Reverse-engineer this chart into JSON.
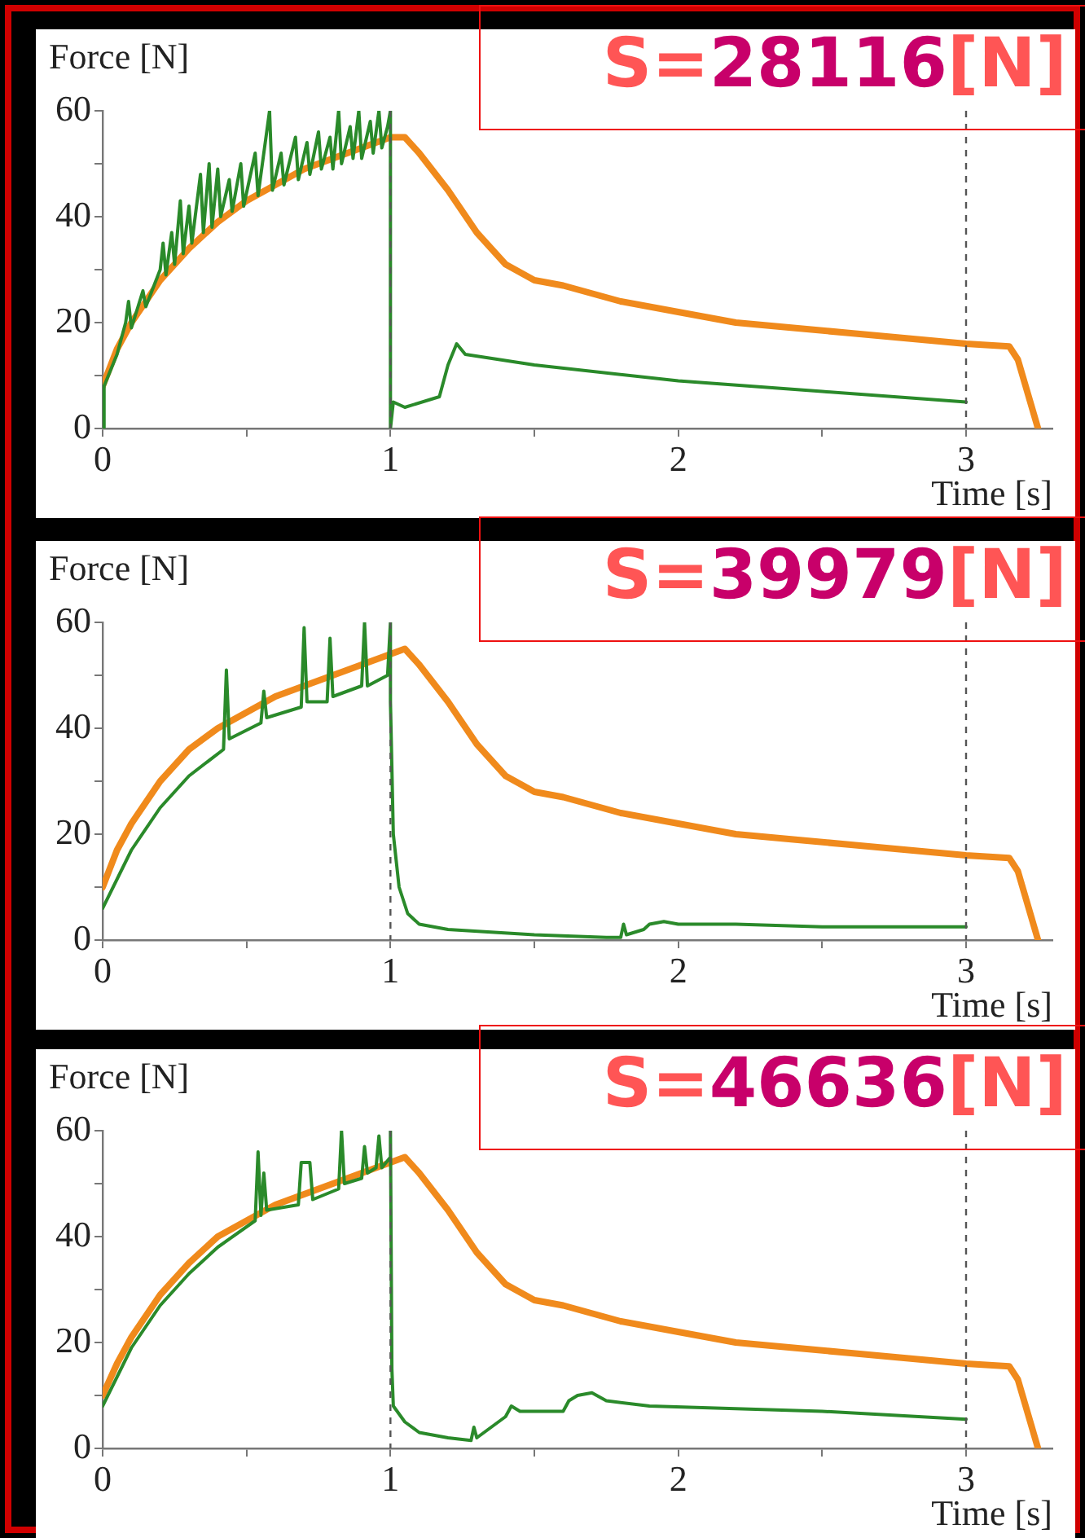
{
  "chart_data": [
    {
      "type": "line",
      "xlabel": "Time [s]",
      "ylabel": "Force [N]",
      "annotations": [
        "S=28116[N]"
      ],
      "xlim": [
        0,
        3.3
      ],
      "ylim": [
        0,
        60
      ],
      "xticks": [
        0,
        {
          "value": 0.5,
          "label": null
        },
        1,
        {
          "value": 1.5,
          "label": null
        },
        2,
        {
          "value": 2.5,
          "label": null
        },
        3
      ],
      "yticks": [
        0,
        {
          "value": 10,
          "label": null
        },
        20,
        {
          "value": 30,
          "label": null
        },
        40,
        {
          "value": 50,
          "label": null
        },
        60
      ],
      "grid": false,
      "legend": false,
      "marker": "none",
      "ref_lines": [
        {
          "axis": "x",
          "value": 1,
          "line_style": "dashed"
        },
        {
          "axis": "x",
          "value": 3,
          "line_style": "dashed"
        }
      ],
      "series": [
        {
          "color": "#f08a1c",
          "x": [
            0,
            0.05,
            0.1,
            0.2,
            0.3,
            0.4,
            0.5,
            0.6,
            0.7,
            0.8,
            0.9,
            1.0,
            1.05,
            1.1,
            1.2,
            1.3,
            1.4,
            1.5,
            1.6,
            1.8,
            2.0,
            2.2,
            2.4,
            2.6,
            2.8,
            3.0,
            3.15,
            3.18,
            3.25
          ],
          "values": [
            8,
            15,
            20,
            28,
            34,
            39,
            43,
            46,
            49,
            51,
            53,
            55,
            55,
            52,
            45,
            37,
            31,
            28,
            27,
            24,
            22,
            20,
            19,
            18,
            17,
            16,
            15.5,
            13,
            0
          ]
        },
        {
          "color": "#2a8a2a",
          "x": [
            0,
            0.005,
            0.05,
            0.08,
            0.09,
            0.1,
            0.14,
            0.15,
            0.2,
            0.21,
            0.22,
            0.24,
            0.25,
            0.27,
            0.28,
            0.3,
            0.31,
            0.34,
            0.35,
            0.37,
            0.38,
            0.4,
            0.41,
            0.44,
            0.45,
            0.48,
            0.49,
            0.53,
            0.54,
            0.58,
            0.59,
            0.62,
            0.63,
            0.67,
            0.68,
            0.71,
            0.72,
            0.75,
            0.76,
            0.79,
            0.8,
            0.82,
            0.83,
            0.86,
            0.87,
            0.89,
            0.9,
            0.93,
            0.94,
            0.96,
            0.97,
            0.99,
            1.0,
            1.0,
            1.01,
            1.05,
            1.17,
            1.2,
            1.23,
            1.26,
            1.5,
            2.0,
            2.5,
            3.0
          ],
          "values": [
            0,
            8,
            14,
            20,
            24,
            19,
            26,
            23,
            30,
            35,
            29,
            37,
            31,
            43,
            33,
            42,
            35,
            48,
            37,
            50,
            38,
            49,
            40,
            47,
            41,
            50,
            42,
            52,
            44,
            60,
            45,
            52,
            46,
            55,
            47,
            54,
            48,
            56,
            49,
            55,
            49,
            60,
            50,
            57,
            51,
            60,
            51,
            58,
            52,
            60,
            53,
            57,
            60,
            0,
            5,
            4,
            6,
            12,
            16,
            14,
            12,
            9,
            7,
            5
          ]
        }
      ]
    },
    {
      "type": "line",
      "xlabel": "Time [s]",
      "ylabel": "Force [N]",
      "annotations": [
        "S=39979[N]"
      ],
      "xlim": [
        0,
        3.3
      ],
      "ylim": [
        0,
        60
      ],
      "xticks": [
        0,
        {
          "value": 0.5,
          "label": null
        },
        1,
        {
          "value": 1.5,
          "label": null
        },
        2,
        {
          "value": 2.5,
          "label": null
        },
        3
      ],
      "yticks": [
        0,
        {
          "value": 10,
          "label": null
        },
        20,
        {
          "value": 30,
          "label": null
        },
        40,
        {
          "value": 50,
          "label": null
        },
        60
      ],
      "grid": false,
      "legend": false,
      "marker": "none",
      "ref_lines": [
        {
          "axis": "x",
          "value": 1,
          "line_style": "dashed"
        },
        {
          "axis": "x",
          "value": 3,
          "line_style": "dashed"
        }
      ],
      "series": [
        {
          "color": "#f08a1c",
          "x": [
            0,
            0.05,
            0.1,
            0.2,
            0.3,
            0.4,
            0.5,
            0.6,
            0.7,
            0.8,
            0.9,
            1.0,
            1.05,
            1.1,
            1.2,
            1.3,
            1.4,
            1.5,
            1.6,
            1.8,
            2.0,
            2.2,
            2.4,
            2.6,
            2.8,
            3.0,
            3.15,
            3.18,
            3.25
          ],
          "values": [
            10,
            17,
            22,
            30,
            36,
            40,
            43,
            46,
            48,
            50,
            52,
            54,
            55,
            52,
            45,
            37,
            31,
            28,
            27,
            24,
            22,
            20,
            19,
            18,
            17,
            16,
            15.5,
            13,
            0
          ]
        },
        {
          "color": "#2a8a2a",
          "x": [
            0,
            0.1,
            0.2,
            0.3,
            0.42,
            0.43,
            0.44,
            0.55,
            0.56,
            0.57,
            0.69,
            0.7,
            0.71,
            0.78,
            0.79,
            0.8,
            0.9,
            0.91,
            0.92,
            0.99,
            1.0,
            1.0,
            1.01,
            1.03,
            1.06,
            1.1,
            1.2,
            1.5,
            1.75,
            1.8,
            1.81,
            1.82,
            1.88,
            1.9,
            1.95,
            2.0,
            2.2,
            2.5,
            3.0
          ],
          "values": [
            6,
            17,
            25,
            31,
            36,
            51,
            38,
            41,
            47,
            42,
            44,
            59,
            45,
            45,
            57,
            46,
            48,
            60,
            48,
            50,
            60,
            45,
            20,
            10,
            5,
            3,
            2,
            1,
            0.5,
            0.5,
            3,
            1,
            2,
            3,
            3.5,
            3,
            3,
            2.5,
            2.5
          ]
        }
      ]
    },
    {
      "type": "line",
      "xlabel": "Time [s]",
      "ylabel": "Force [N]",
      "annotations": [
        "S=46636[N]"
      ],
      "xlim": [
        0,
        3.3
      ],
      "ylim": [
        0,
        60
      ],
      "xticks": [
        0,
        {
          "value": 0.5,
          "label": null
        },
        1,
        {
          "value": 1.5,
          "label": null
        },
        2,
        {
          "value": 2.5,
          "label": null
        },
        3
      ],
      "yticks": [
        0,
        {
          "value": 10,
          "label": null
        },
        20,
        {
          "value": 30,
          "label": null
        },
        40,
        {
          "value": 50,
          "label": null
        },
        60
      ],
      "grid": false,
      "legend": false,
      "marker": "none",
      "ref_lines": [
        {
          "axis": "x",
          "value": 1,
          "line_style": "dashed"
        },
        {
          "axis": "x",
          "value": 3,
          "line_style": "dashed"
        }
      ],
      "series": [
        {
          "color": "#f08a1c",
          "x": [
            0,
            0.05,
            0.1,
            0.2,
            0.3,
            0.4,
            0.5,
            0.6,
            0.7,
            0.8,
            0.9,
            1.0,
            1.05,
            1.1,
            1.2,
            1.3,
            1.4,
            1.5,
            1.6,
            1.8,
            2.0,
            2.2,
            2.4,
            2.6,
            2.8,
            3.0,
            3.15,
            3.18,
            3.25
          ],
          "values": [
            10,
            16,
            21,
            29,
            35,
            40,
            43,
            46,
            48,
            50,
            52,
            54,
            55,
            52,
            45,
            37,
            31,
            28,
            27,
            24,
            22,
            20,
            19,
            18,
            17,
            16,
            15.5,
            13,
            0
          ]
        },
        {
          "color": "#2a8a2a",
          "x": [
            0,
            0.1,
            0.2,
            0.3,
            0.4,
            0.53,
            0.54,
            0.55,
            0.56,
            0.57,
            0.68,
            0.69,
            0.72,
            0.73,
            0.82,
            0.83,
            0.84,
            0.9,
            0.91,
            0.92,
            0.95,
            0.96,
            0.97,
            1.0,
            1.0,
            1.005,
            1.01,
            1.05,
            1.1,
            1.2,
            1.28,
            1.29,
            1.3,
            1.35,
            1.4,
            1.42,
            1.45,
            1.6,
            1.62,
            1.65,
            1.7,
            1.75,
            1.9,
            2.5,
            3.0
          ],
          "values": [
            8,
            19,
            27,
            33,
            38,
            43,
            56,
            44,
            52,
            45,
            46,
            54,
            54,
            47,
            49,
            60,
            50,
            51,
            57,
            52,
            53,
            59,
            53,
            55,
            60,
            15,
            8,
            5,
            3,
            2,
            1.5,
            4,
            2,
            4,
            6,
            8,
            7,
            7,
            9,
            10,
            10.5,
            9,
            8,
            7,
            5.5
          ]
        }
      ]
    }
  ]
}
